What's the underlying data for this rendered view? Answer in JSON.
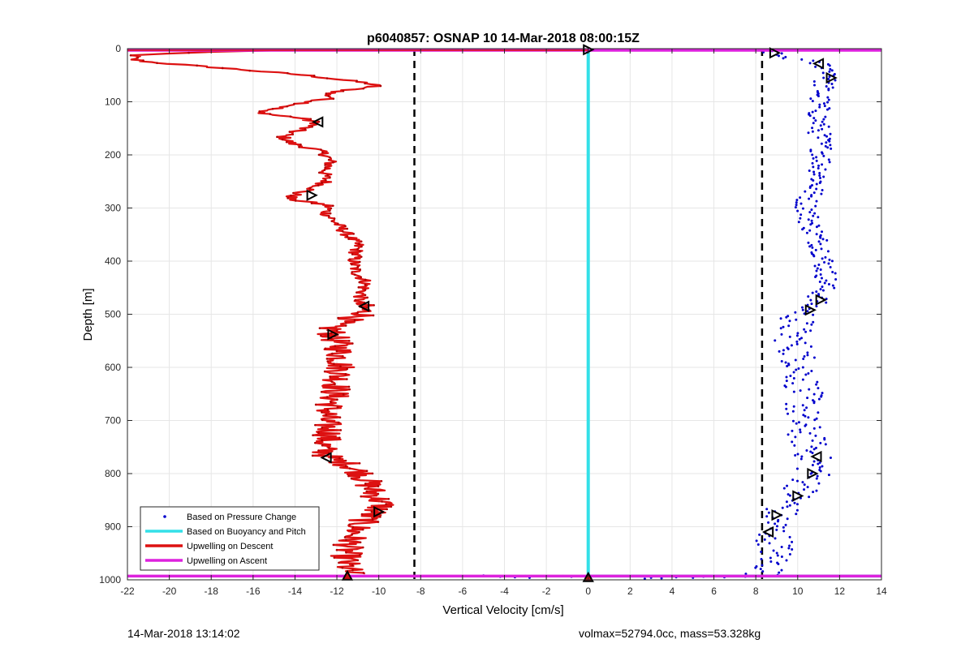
{
  "chart_data": {
    "type": "scatter",
    "title": "p6040857: OSNAP 10 14-Mar-2018 08:00:15Z",
    "xlabel": "Vertical Velocity [cm/s]",
    "ylabel": "Depth [m]",
    "xlim": [
      -22,
      14
    ],
    "ylim": [
      0,
      1000
    ],
    "y_reversed": true,
    "grid": true,
    "xticks": [
      -22,
      -20,
      -18,
      -16,
      -14,
      -12,
      -10,
      -8,
      -6,
      -4,
      -2,
      0,
      2,
      4,
      6,
      8,
      10,
      12,
      14
    ],
    "yticks": [
      0,
      100,
      200,
      300,
      400,
      500,
      600,
      700,
      800,
      900,
      1000
    ],
    "legend_position": "bottom-left",
    "series": [
      {
        "name": "Based on Pressure Change",
        "style": "dots",
        "color": "#0000cc",
        "profile": [
          [
            0,
            8.8
          ],
          [
            10,
            8.7
          ],
          [
            30,
            11.2
          ],
          [
            50,
            11.8
          ],
          [
            60,
            11.3
          ],
          [
            100,
            11.0
          ],
          [
            150,
            11.0
          ],
          [
            200,
            11.2
          ],
          [
            250,
            11.0
          ],
          [
            290,
            10.4
          ],
          [
            330,
            10.6
          ],
          [
            380,
            11.2
          ],
          [
            440,
            11.4
          ],
          [
            480,
            10.8
          ],
          [
            500,
            10.1
          ],
          [
            540,
            9.7
          ],
          [
            600,
            10.2
          ],
          [
            660,
            10.3
          ],
          [
            700,
            10.1
          ],
          [
            760,
            10.7
          ],
          [
            800,
            10.8
          ],
          [
            840,
            10.0
          ],
          [
            870,
            9.2
          ],
          [
            900,
            8.8
          ],
          [
            940,
            9.0
          ],
          [
            980,
            8.7
          ],
          [
            993,
            8.2
          ]
        ]
      },
      {
        "name": "Based on Buoyancy and Pitch",
        "style": "line",
        "color": "#33e0e8",
        "points": [
          [
            0,
            0
          ],
          [
            0,
            1000
          ]
        ]
      },
      {
        "name": "Upwelling on Descent",
        "style": "line",
        "color": "#dd1111",
        "profile": [
          [
            3,
            -14.5
          ],
          [
            7,
            -19.0
          ],
          [
            12,
            -21.6
          ],
          [
            20,
            -21.8
          ],
          [
            25,
            -21.0
          ],
          [
            30,
            -19.5
          ],
          [
            38,
            -17.0
          ],
          [
            50,
            -13.5
          ],
          [
            60,
            -11.5
          ],
          [
            65,
            -10.5
          ],
          [
            70,
            -10.1
          ],
          [
            78,
            -11.5
          ],
          [
            85,
            -12.5
          ],
          [
            92,
            -12.2
          ],
          [
            100,
            -13.2
          ],
          [
            110,
            -14.5
          ],
          [
            118,
            -15.8
          ],
          [
            125,
            -15.0
          ],
          [
            130,
            -13.8
          ],
          [
            140,
            -12.9
          ],
          [
            150,
            -13.6
          ],
          [
            165,
            -14.6
          ],
          [
            178,
            -14.2
          ],
          [
            190,
            -13.0
          ],
          [
            200,
            -12.5
          ],
          [
            215,
            -12.3
          ],
          [
            235,
            -12.6
          ],
          [
            250,
            -12.5
          ],
          [
            262,
            -13.0
          ],
          [
            272,
            -13.9
          ],
          [
            283,
            -14.3
          ],
          [
            295,
            -12.4
          ],
          [
            310,
            -12.5
          ],
          [
            330,
            -12.0
          ],
          [
            350,
            -11.5
          ],
          [
            370,
            -11.0
          ],
          [
            385,
            -11.1
          ],
          [
            400,
            -11.2
          ],
          [
            420,
            -11.1
          ],
          [
            440,
            -10.6
          ],
          [
            460,
            -10.8
          ],
          [
            480,
            -11.0
          ],
          [
            500,
            -10.6
          ],
          [
            520,
            -12.3
          ],
          [
            540,
            -12.2
          ],
          [
            560,
            -11.9
          ],
          [
            600,
            -11.8
          ],
          [
            650,
            -12.1
          ],
          [
            700,
            -12.6
          ],
          [
            720,
            -12.3
          ],
          [
            750,
            -12.7
          ],
          [
            770,
            -12.4
          ],
          [
            780,
            -11.6
          ],
          [
            800,
            -10.8
          ],
          [
            820,
            -10.5
          ],
          [
            840,
            -10.2
          ],
          [
            860,
            -9.8
          ],
          [
            880,
            -10.5
          ],
          [
            900,
            -11.0
          ],
          [
            940,
            -11.5
          ],
          [
            970,
            -11.6
          ],
          [
            985,
            -11.4
          ],
          [
            990,
            -11.2
          ]
        ]
      },
      {
        "name": "Upwelling on Ascent",
        "style": "line",
        "color": "#dd22dd",
        "points": [
          [
            -22,
            3
          ],
          [
            14,
            3
          ],
          [
            -22,
            993
          ],
          [
            14,
            993
          ]
        ]
      }
    ],
    "extra_lines": [
      {
        "kind": "horizontal",
        "color": "#33e0e8",
        "y": 993,
        "x_range": [
          0,
          14
        ]
      },
      {
        "kind": "vertical-dashed",
        "color": "#000000",
        "x": -8.3
      },
      {
        "kind": "vertical-dashed",
        "color": "#000000",
        "x": 8.3
      }
    ],
    "bottom_scatter": [
      [
        -5,
        992
      ],
      [
        -4.5,
        993
      ],
      [
        -4.2,
        994
      ],
      [
        -3.5,
        995
      ],
      [
        -3.0,
        993
      ],
      [
        -2.8,
        996
      ],
      [
        -1.2,
        993
      ],
      [
        -0.8,
        994
      ],
      [
        2.7,
        998
      ],
      [
        3.0,
        996
      ],
      [
        3.5,
        997
      ],
      [
        4.2,
        995
      ],
      [
        5.0,
        996
      ],
      [
        5.5,
        994
      ],
      [
        6.2,
        993
      ],
      [
        6.5,
        995
      ],
      [
        7.5,
        994
      ]
    ],
    "markers": [
      {
        "x": 8.9,
        "y": 8,
        "dir": "right"
      },
      {
        "x": 11.0,
        "y": 28,
        "dir": "left"
      },
      {
        "x": 11.6,
        "y": 55,
        "dir": "right"
      },
      {
        "x": -12.9,
        "y": 138,
        "dir": "left"
      },
      {
        "x": -13.2,
        "y": 276,
        "dir": "right"
      },
      {
        "x": 11.1,
        "y": 473,
        "dir": "right"
      },
      {
        "x": 10.6,
        "y": 492,
        "dir": "right"
      },
      {
        "x": -10.7,
        "y": 485,
        "dir": "left"
      },
      {
        "x": -12.2,
        "y": 538,
        "dir": "right"
      },
      {
        "x": -12.5,
        "y": 770,
        "dir": "left"
      },
      {
        "x": 10.9,
        "y": 768,
        "dir": "left"
      },
      {
        "x": 10.7,
        "y": 800,
        "dir": "right"
      },
      {
        "x": 10.0,
        "y": 842,
        "dir": "right"
      },
      {
        "x": -10.0,
        "y": 872,
        "dir": "right"
      },
      {
        "x": 9.0,
        "y": 878,
        "dir": "right"
      },
      {
        "x": 8.6,
        "y": 910,
        "dir": "left"
      },
      {
        "x": 0,
        "y": 2,
        "dir": "right"
      },
      {
        "x": 0,
        "y": 996,
        "dir": "up"
      },
      {
        "x": -11.5,
        "y": 993,
        "dir": "up"
      }
    ]
  },
  "footer": {
    "left": "14-Mar-2018 13:14:02",
    "right": "volmax=52794.0cc, mass=53.328kg"
  }
}
